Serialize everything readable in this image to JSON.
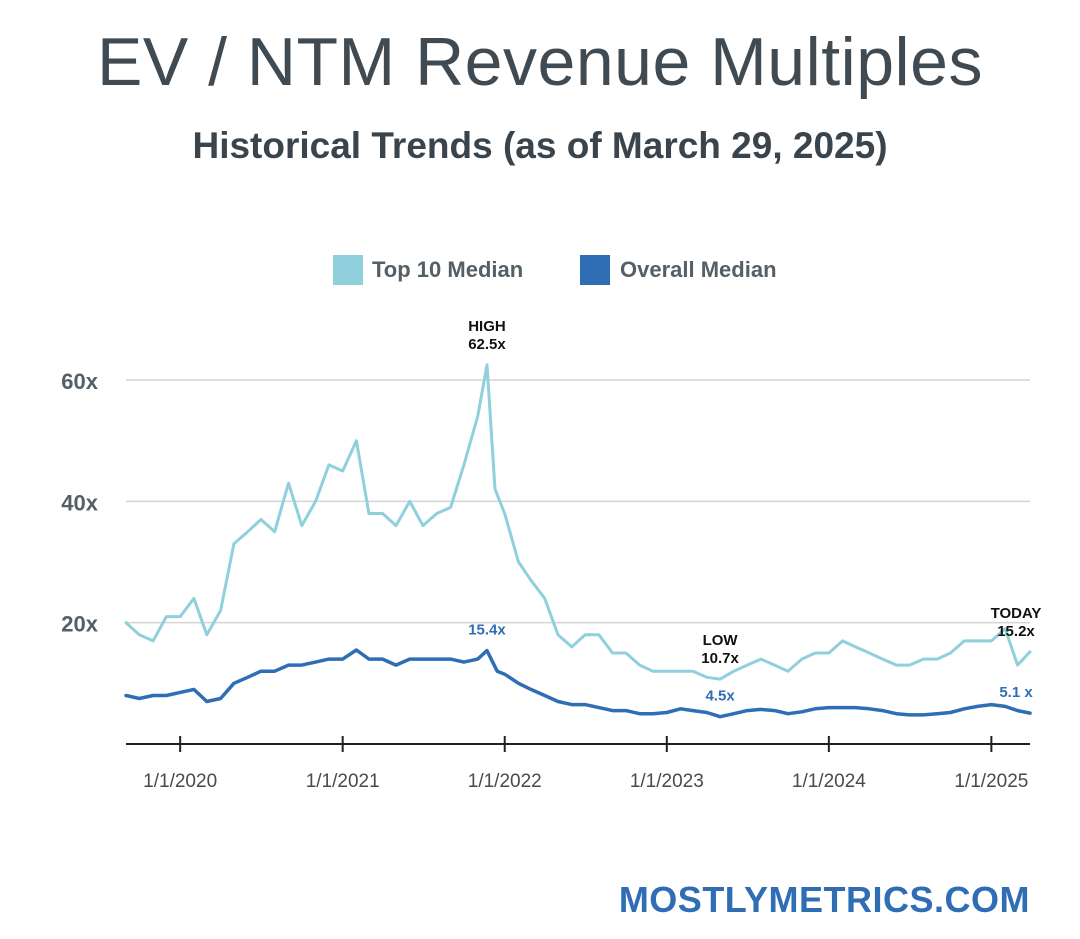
{
  "title": "EV / NTM Revenue Multiples",
  "subtitle": "Historical Trends (as of March 29, 2025)",
  "footer": "MOSTLYMETRICS.COM",
  "chart_data": {
    "type": "line",
    "title": "EV / NTM Revenue Multiples",
    "subtitle": "Historical Trends (as of March 29, 2025)",
    "legend_position": "top-center",
    "grid": true,
    "ylim": [
      0,
      60
    ],
    "yticks": [
      {
        "value": 20,
        "label": "20x"
      },
      {
        "value": 40,
        "label": "40x"
      },
      {
        "value": 60,
        "label": "60x"
      }
    ],
    "xlim": [
      "2019-09-01",
      "2025-03-29"
    ],
    "xticks": [
      {
        "date": "2020-01-01",
        "label": "1/1/2020"
      },
      {
        "date": "2021-01-01",
        "label": "1/1/2021"
      },
      {
        "date": "2022-01-01",
        "label": "1/1/2022"
      },
      {
        "date": "2023-01-01",
        "label": "1/1/2023"
      },
      {
        "date": "2024-01-01",
        "label": "1/1/2024"
      },
      {
        "date": "2025-01-01",
        "label": "1/1/2025"
      }
    ],
    "series": [
      {
        "name": "Top 10 Median",
        "color": "#8fd0dc",
        "points": [
          [
            "2019-09-01",
            20
          ],
          [
            "2019-10-01",
            18
          ],
          [
            "2019-11-01",
            17
          ],
          [
            "2019-12-01",
            21
          ],
          [
            "2020-01-01",
            21
          ],
          [
            "2020-02-01",
            24
          ],
          [
            "2020-03-01",
            18
          ],
          [
            "2020-04-01",
            22
          ],
          [
            "2020-05-01",
            33
          ],
          [
            "2020-06-01",
            35
          ],
          [
            "2020-07-01",
            37
          ],
          [
            "2020-08-01",
            35
          ],
          [
            "2020-09-01",
            43
          ],
          [
            "2020-10-01",
            36
          ],
          [
            "2020-11-01",
            40
          ],
          [
            "2020-12-01",
            46
          ],
          [
            "2021-01-01",
            45
          ],
          [
            "2021-02-01",
            50
          ],
          [
            "2021-03-01",
            38
          ],
          [
            "2021-04-01",
            38
          ],
          [
            "2021-05-01",
            36
          ],
          [
            "2021-06-01",
            40
          ],
          [
            "2021-07-01",
            36
          ],
          [
            "2021-08-01",
            38
          ],
          [
            "2021-09-01",
            39
          ],
          [
            "2021-10-01",
            46
          ],
          [
            "2021-11-01",
            54
          ],
          [
            "2021-11-22",
            62.5
          ],
          [
            "2021-12-10",
            42
          ],
          [
            "2022-01-01",
            38
          ],
          [
            "2022-02-01",
            30
          ],
          [
            "2022-03-01",
            27
          ],
          [
            "2022-04-01",
            24
          ],
          [
            "2022-05-01",
            18
          ],
          [
            "2022-06-01",
            16
          ],
          [
            "2022-07-01",
            18
          ],
          [
            "2022-08-01",
            18
          ],
          [
            "2022-09-01",
            15
          ],
          [
            "2022-10-01",
            15
          ],
          [
            "2022-11-01",
            13
          ],
          [
            "2022-12-01",
            12
          ],
          [
            "2023-01-01",
            12
          ],
          [
            "2023-02-01",
            12
          ],
          [
            "2023-03-01",
            12
          ],
          [
            "2023-04-01",
            11
          ],
          [
            "2023-05-01",
            10.7
          ],
          [
            "2023-06-01",
            12
          ],
          [
            "2023-07-01",
            13
          ],
          [
            "2023-08-01",
            14
          ],
          [
            "2023-09-01",
            13
          ],
          [
            "2023-10-01",
            12
          ],
          [
            "2023-11-01",
            14
          ],
          [
            "2023-12-01",
            15
          ],
          [
            "2024-01-01",
            15
          ],
          [
            "2024-02-01",
            17
          ],
          [
            "2024-03-01",
            16
          ],
          [
            "2024-04-01",
            15
          ],
          [
            "2024-05-01",
            14
          ],
          [
            "2024-06-01",
            13
          ],
          [
            "2024-07-01",
            13
          ],
          [
            "2024-08-01",
            14
          ],
          [
            "2024-09-01",
            14
          ],
          [
            "2024-10-01",
            15
          ],
          [
            "2024-11-01",
            17
          ],
          [
            "2024-12-01",
            17
          ],
          [
            "2025-01-01",
            17
          ],
          [
            "2025-02-01",
            19
          ],
          [
            "2025-03-01",
            13
          ],
          [
            "2025-03-29",
            15.2
          ]
        ]
      },
      {
        "name": "Overall Median",
        "color": "#2f6eb5",
        "points": [
          [
            "2019-09-01",
            8
          ],
          [
            "2019-10-01",
            7.5
          ],
          [
            "2019-11-01",
            8
          ],
          [
            "2019-12-01",
            8
          ],
          [
            "2020-01-01",
            8.5
          ],
          [
            "2020-02-01",
            9
          ],
          [
            "2020-03-01",
            7
          ],
          [
            "2020-04-01",
            7.5
          ],
          [
            "2020-05-01",
            10
          ],
          [
            "2020-06-01",
            11
          ],
          [
            "2020-07-01",
            12
          ],
          [
            "2020-08-01",
            12
          ],
          [
            "2020-09-01",
            13
          ],
          [
            "2020-10-01",
            13
          ],
          [
            "2020-11-01",
            13.5
          ],
          [
            "2020-12-01",
            14
          ],
          [
            "2021-01-01",
            14
          ],
          [
            "2021-02-01",
            15.5
          ],
          [
            "2021-03-01",
            14
          ],
          [
            "2021-04-01",
            14
          ],
          [
            "2021-05-01",
            13
          ],
          [
            "2021-06-01",
            14
          ],
          [
            "2021-07-01",
            14
          ],
          [
            "2021-08-01",
            14
          ],
          [
            "2021-09-01",
            14
          ],
          [
            "2021-10-01",
            13.5
          ],
          [
            "2021-11-01",
            14
          ],
          [
            "2021-11-22",
            15.4
          ],
          [
            "2021-12-15",
            12
          ],
          [
            "2022-01-01",
            11.5
          ],
          [
            "2022-02-01",
            10
          ],
          [
            "2022-03-01",
            9
          ],
          [
            "2022-04-01",
            8
          ],
          [
            "2022-05-01",
            7
          ],
          [
            "2022-06-01",
            6.5
          ],
          [
            "2022-07-01",
            6.5
          ],
          [
            "2022-08-01",
            6
          ],
          [
            "2022-09-01",
            5.5
          ],
          [
            "2022-10-01",
            5.5
          ],
          [
            "2022-11-01",
            5
          ],
          [
            "2022-12-01",
            5
          ],
          [
            "2023-01-01",
            5.2
          ],
          [
            "2023-02-01",
            5.8
          ],
          [
            "2023-03-01",
            5.5
          ],
          [
            "2023-04-01",
            5.2
          ],
          [
            "2023-05-01",
            4.5
          ],
          [
            "2023-06-01",
            5
          ],
          [
            "2023-07-01",
            5.5
          ],
          [
            "2023-08-01",
            5.7
          ],
          [
            "2023-09-01",
            5.5
          ],
          [
            "2023-10-01",
            5
          ],
          [
            "2023-11-01",
            5.3
          ],
          [
            "2023-12-01",
            5.8
          ],
          [
            "2024-01-01",
            6
          ],
          [
            "2024-02-01",
            6
          ],
          [
            "2024-03-01",
            6
          ],
          [
            "2024-04-01",
            5.8
          ],
          [
            "2024-05-01",
            5.5
          ],
          [
            "2024-06-01",
            5
          ],
          [
            "2024-07-01",
            4.8
          ],
          [
            "2024-08-01",
            4.8
          ],
          [
            "2024-09-01",
            5
          ],
          [
            "2024-10-01",
            5.2
          ],
          [
            "2024-11-01",
            5.8
          ],
          [
            "2024-12-01",
            6.2
          ],
          [
            "2025-01-01",
            6.5
          ],
          [
            "2025-02-01",
            6.2
          ],
          [
            "2025-03-01",
            5.5
          ],
          [
            "2025-03-29",
            5.1
          ]
        ]
      }
    ],
    "annotations": [
      {
        "lines": [
          "HIGH",
          "62.5x"
        ],
        "series": "Top 10 Median",
        "date": "2021-11-22",
        "value": 62.5,
        "style": "dark",
        "placement": "above"
      },
      {
        "lines": [
          "15.4x"
        ],
        "series": "Overall Median",
        "date": "2021-11-22",
        "value": 15.4,
        "style": "blue",
        "placement": "above"
      },
      {
        "lines": [
          "LOW",
          "10.7x"
        ],
        "series": "Top 10 Median",
        "date": "2023-05-01",
        "value": 10.7,
        "style": "dark",
        "placement": "above"
      },
      {
        "lines": [
          "4.5x"
        ],
        "series": "Overall Median",
        "date": "2023-05-01",
        "value": 4.5,
        "style": "blue",
        "placement": "above"
      },
      {
        "lines": [
          "TODAY",
          "15.2x"
        ],
        "series": "Top 10 Median",
        "date": "2025-03-29",
        "value": 15.2,
        "style": "dark",
        "placement": "above"
      },
      {
        "lines": [
          "5.1 x"
        ],
        "series": "Overall Median",
        "date": "2025-03-29",
        "value": 5.1,
        "style": "blue",
        "placement": "above"
      }
    ]
  }
}
